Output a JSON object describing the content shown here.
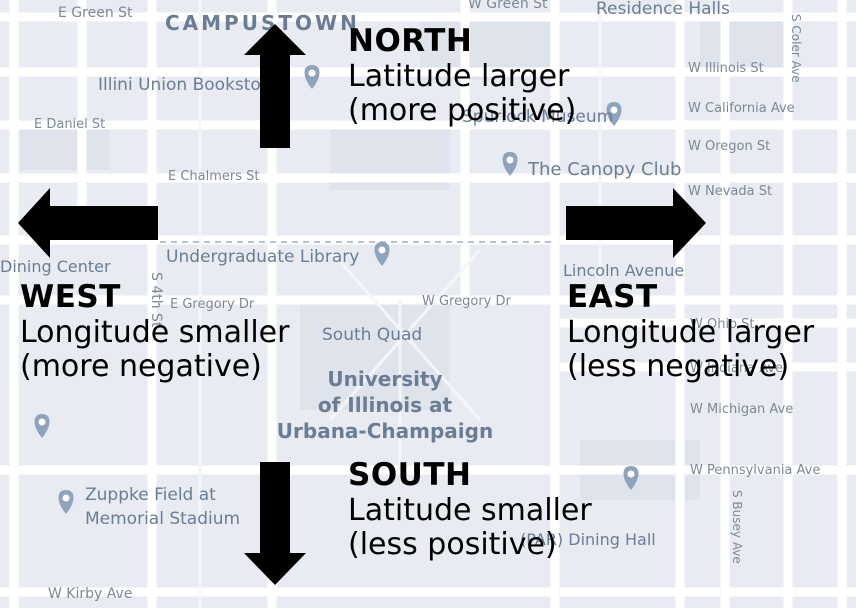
{
  "map": {
    "labels": [
      {
        "text": "CAMPUSTOWN",
        "kind": "district"
      },
      {
        "text": "E Green St",
        "kind": "street"
      },
      {
        "text": "W Green St",
        "kind": "street"
      },
      {
        "text": "Residence Halls",
        "kind": "poi"
      },
      {
        "text": "Illini Union Bookstore",
        "kind": "poi"
      },
      {
        "text": "Spurlock Museum",
        "kind": "poi"
      },
      {
        "text": "The Canopy Club",
        "kind": "poi"
      },
      {
        "text": "E Daniel St",
        "kind": "street"
      },
      {
        "text": "E Chalmers St",
        "kind": "street"
      },
      {
        "text": "W Illinois St",
        "kind": "street"
      },
      {
        "text": "W California Ave",
        "kind": "street"
      },
      {
        "text": "W Oregon St",
        "kind": "street"
      },
      {
        "text": "W Nevada St",
        "kind": "street"
      },
      {
        "text": "Undergraduate Library",
        "kind": "poi"
      },
      {
        "text": "Lincoln Avenue",
        "kind": "poi"
      },
      {
        "text": "E Gregory Dr",
        "kind": "street"
      },
      {
        "text": "W Gregory Dr",
        "kind": "street"
      },
      {
        "text": "South Quad",
        "kind": "poi"
      },
      {
        "text": "University of Illinois at Urbana-Champaign",
        "kind": "poi"
      },
      {
        "text": "W Ohio St",
        "kind": "street"
      },
      {
        "text": "W Indiana Ave",
        "kind": "street"
      },
      {
        "text": "W Michigan Ave",
        "kind": "street"
      },
      {
        "text": "W Pennsylvania Ave",
        "kind": "street"
      },
      {
        "text": "Zuppke Field at Memorial Stadium",
        "kind": "poi"
      },
      {
        "text": "W Kirby Ave",
        "kind": "street"
      },
      {
        "text": "S Coler Ave",
        "kind": "street"
      },
      {
        "text": "S Busey Ave",
        "kind": "street"
      },
      {
        "text": "S 4th St",
        "kind": "street"
      },
      {
        "text": "Dining Center",
        "kind": "poi"
      },
      {
        "text": "(PAR) Dining Hall",
        "kind": "poi"
      }
    ],
    "colors": {
      "background": "#e9edf3",
      "road": "#ffffff",
      "label": "#7d8896",
      "accent_label": "#6b7d95",
      "pin": "#8fa3bd",
      "arrow": "#000000"
    }
  },
  "directions": {
    "north": {
      "title": "NORTH",
      "line1": "Latitude larger",
      "line2": "(more positive)"
    },
    "south": {
      "title": "SOUTH",
      "line1": "Latitude smaller",
      "line2": "(less positive)"
    },
    "west": {
      "title": "WEST",
      "line1": "Longitude smaller",
      "line2": "(more negative)"
    },
    "east": {
      "title": "EAST",
      "line1": "Longitude larger",
      "line2": "(less negative)"
    }
  }
}
